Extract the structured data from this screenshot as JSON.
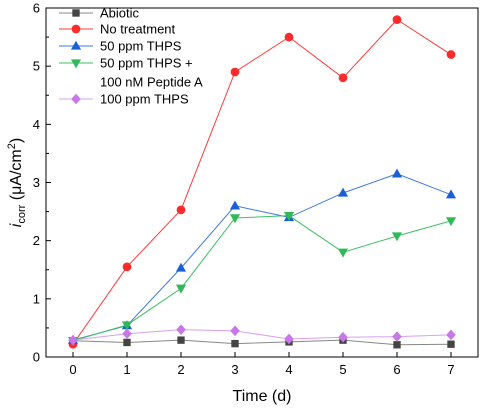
{
  "chart_data": {
    "type": "line",
    "title": "",
    "xlabel": "Time (d)",
    "ylabel": {
      "main": "i",
      "sub": "corr",
      "unit_open": " (μA/cm",
      "unit_sup": "2",
      "unit_close": ")"
    },
    "xlim": [
      -0.5,
      7.5
    ],
    "ylim": [
      0,
      6
    ],
    "x_ticks": [
      0,
      1,
      2,
      3,
      4,
      5,
      6,
      7
    ],
    "y_ticks": [
      0,
      1,
      2,
      3,
      4,
      5,
      6
    ],
    "grid": false,
    "legend_position": "top-left",
    "x": [
      0,
      1,
      2,
      3,
      4,
      5,
      6,
      7
    ],
    "series": [
      {
        "name": "Abiotic",
        "marker": "square",
        "color": "#444444",
        "line_color": "#888888",
        "values": [
          0.28,
          0.25,
          0.29,
          0.23,
          0.26,
          0.29,
          0.21,
          0.22
        ]
      },
      {
        "name": "No treatment",
        "marker": "circle",
        "color": "#ff2b2b",
        "line_color": "#ff3b3b",
        "values": [
          0.22,
          1.55,
          2.53,
          4.9,
          5.5,
          4.8,
          5.8,
          5.2
        ]
      },
      {
        "name": "50 ppm THPS",
        "marker": "triangle-up",
        "color": "#1a5fd6",
        "line_color": "#3d78e0",
        "values": [
          0.29,
          0.54,
          1.53,
          2.6,
          2.4,
          2.82,
          3.15,
          2.79
        ]
      },
      {
        "name": [
          "50 ppm THPS +",
          "100 nM Peptide A"
        ],
        "marker": "triangle-down",
        "color": "#2fba5a",
        "line_color": "#3cc065",
        "values": [
          0.28,
          0.55,
          1.18,
          2.39,
          2.43,
          1.8,
          2.08,
          2.34
        ]
      },
      {
        "name": "100 ppm THPS",
        "marker": "diamond",
        "color": "#c977e8",
        "line_color": "#d9a0f0",
        "values": [
          0.29,
          0.4,
          0.47,
          0.45,
          0.31,
          0.34,
          0.35,
          0.38
        ]
      }
    ]
  }
}
